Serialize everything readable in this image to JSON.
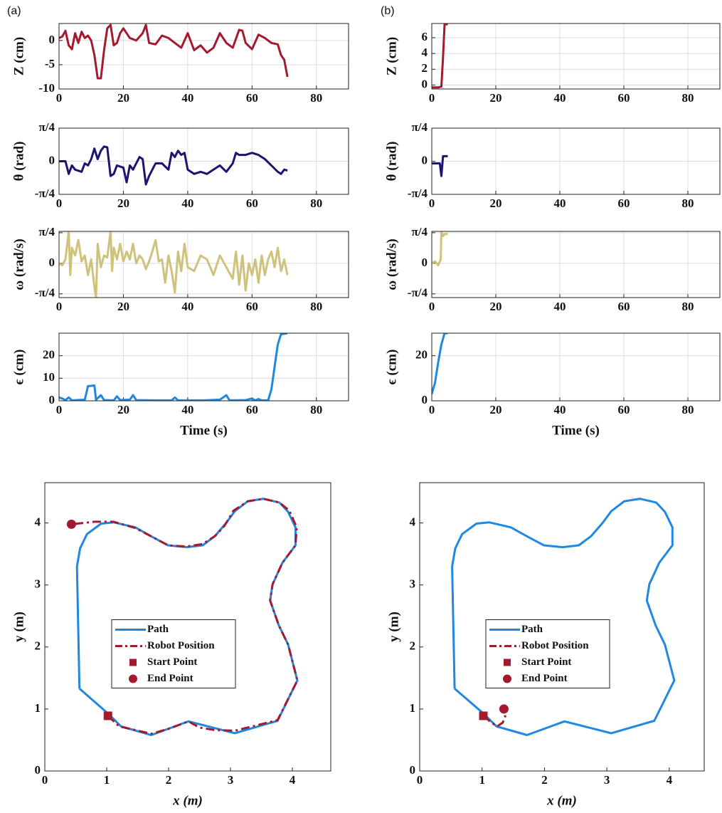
{
  "chart_data": [
    {
      "type": "line",
      "label": "(a)",
      "ylabel": "Z (cm)",
      "color": "#a31a2e",
      "grid": true,
      "xlim": [
        0,
        90
      ],
      "xticks": [
        0,
        20,
        40,
        60,
        80
      ],
      "ylim": [
        -10,
        3.5
      ],
      "yticks": [
        -10,
        -5,
        0
      ],
      "x": [
        0,
        1,
        2,
        3,
        4,
        5,
        6,
        7,
        8,
        9,
        10,
        11,
        12,
        13,
        14,
        15,
        16,
        17,
        18,
        19,
        20,
        22,
        24,
        26,
        27,
        28,
        30,
        32,
        34,
        36,
        38,
        40,
        42,
        44,
        46,
        48,
        50,
        52,
        54,
        56,
        57,
        58,
        60,
        62,
        64,
        66,
        68,
        69,
        70,
        71
      ],
      "values": [
        0.5,
        0.8,
        2,
        -1,
        -1.8,
        1.5,
        -0.5,
        1.8,
        0.5,
        1,
        0,
        -3,
        -7.8,
        -7.8,
        -2,
        2.5,
        3.2,
        -1,
        -0.5,
        1.5,
        2.5,
        0.5,
        0,
        1.5,
        3.2,
        -0.5,
        -0.8,
        1,
        0.5,
        -0.5,
        -1.5,
        1.5,
        -2,
        -1,
        -2.5,
        -1.5,
        1.5,
        -0.5,
        -1.5,
        2.2,
        2,
        -0.5,
        -1.8,
        1.2,
        0.5,
        -0.5,
        -0.8,
        -3,
        -4,
        -7.5
      ]
    },
    {
      "type": "line",
      "ylabel": "θ (rad)",
      "color": "#1c1570",
      "grid": true,
      "xlim": [
        0,
        90
      ],
      "xticks": [
        0,
        20,
        40,
        60,
        80
      ],
      "ylim": [
        -0.785,
        0.785
      ],
      "yticks": [
        {
          "value": -0.785,
          "label": "-π/4"
        },
        0,
        {
          "value": 0.785,
          "label": "π/4"
        }
      ],
      "x": [
        0,
        2,
        3,
        4,
        5,
        7,
        8,
        9,
        10,
        11,
        12,
        13,
        14,
        15,
        16,
        17,
        18,
        20,
        21,
        22,
        23,
        25,
        26,
        27,
        28,
        30,
        32,
        34,
        35,
        36,
        37,
        38,
        39,
        40,
        42,
        44,
        46,
        48,
        50,
        52,
        54,
        55,
        56,
        58,
        60,
        62,
        64,
        66,
        68,
        69,
        70,
        71
      ],
      "values": [
        0,
        0,
        -0.3,
        -0.1,
        -0.2,
        -0.25,
        -0.05,
        -0.1,
        0.05,
        0.3,
        0.05,
        0.25,
        0.35,
        0.33,
        -0.35,
        -0.3,
        -0.1,
        -0.15,
        -0.5,
        -0.1,
        -0.2,
        0.1,
        0.05,
        -0.55,
        -0.35,
        -0.05,
        -0.05,
        -0.2,
        0.2,
        0.1,
        0.25,
        0.15,
        0.2,
        -0.2,
        -0.3,
        -0.25,
        -0.3,
        -0.2,
        -0.1,
        -0.25,
        -0.05,
        0.2,
        0.15,
        0.15,
        0.2,
        0.15,
        0.05,
        -0.1,
        -0.25,
        -0.3,
        -0.2,
        -0.22
      ]
    },
    {
      "type": "line",
      "ylabel": "ω (rad/s)",
      "color": "#cfc27a",
      "grid": true,
      "xlim": [
        0,
        90
      ],
      "xticks": [
        0,
        20,
        40,
        60,
        80
      ],
      "ylim": [
        -0.88,
        0.82
      ],
      "yticks": [
        {
          "value": -0.785,
          "label": "-π/4"
        },
        0,
        {
          "value": 0.785,
          "label": "π/4"
        }
      ],
      "x": [
        0,
        1,
        2,
        3,
        3.5,
        4,
        5,
        6,
        7,
        8,
        9,
        10,
        11,
        11.5,
        12,
        13,
        14,
        15,
        16,
        16.5,
        17,
        18,
        19,
        20,
        21,
        22,
        23,
        24,
        25,
        26,
        27,
        28,
        29,
        30,
        31,
        32,
        33,
        34,
        35,
        36,
        37,
        38,
        39,
        40,
        42,
        44,
        46,
        48,
        50,
        52,
        54,
        55,
        56,
        57,
        58,
        59,
        60,
        61,
        62,
        63,
        64,
        65,
        66,
        67,
        68,
        69,
        70,
        71
      ],
      "values": [
        0,
        -0.05,
        0.1,
        0.82,
        -0.3,
        0.4,
        0.2,
        0.6,
        0.05,
        0.2,
        -0.3,
        0.1,
        -0.6,
        -0.88,
        0.5,
        -0.1,
        0.2,
        0.15,
        0.82,
        -0.2,
        0.4,
        0.1,
        0.5,
        0.05,
        0.3,
        0.1,
        0.5,
        0,
        0.2,
        0.1,
        -0.15,
        0.05,
        0.3,
        0.6,
        0.05,
        0.1,
        -0.5,
        0.2,
        -0.2,
        -0.75,
        0.3,
        -0.2,
        0.5,
        -0.1,
        -0.2,
        0.2,
        0.1,
        -0.3,
        0.2,
        -0.1,
        -0.4,
        0.3,
        -0.55,
        0.2,
        -0.7,
        0,
        -0.3,
        0.1,
        -0.5,
        0.2,
        -0.3,
        0.1,
        0.3,
        -0.1,
        0.4,
        -0.2,
        0.1,
        -0.3
      ]
    },
    {
      "type": "line",
      "ylabel": "ϵ (cm)",
      "xlabel": "Time (s)",
      "color": "#1f88e0",
      "grid": true,
      "xlim": [
        0,
        90
      ],
      "xticks": [
        0,
        20,
        40,
        60,
        80
      ],
      "ylim": [
        0,
        30
      ],
      "yticks": [
        0,
        10,
        20
      ],
      "x": [
        0,
        1,
        2,
        3,
        4,
        8,
        9,
        11,
        11.5,
        13,
        14,
        17,
        18,
        19,
        22,
        23,
        24,
        30,
        35,
        36,
        37,
        45,
        50,
        52,
        53,
        58,
        60,
        61,
        62,
        63,
        65,
        66,
        67,
        68,
        69,
        71
      ],
      "values": [
        1.5,
        1,
        0.3,
        1.5,
        0.2,
        0.5,
        6.5,
        6.8,
        0.5,
        2.5,
        0.3,
        0.2,
        2,
        0.3,
        0.5,
        2.5,
        0.3,
        0.2,
        0.2,
        1.5,
        0.2,
        0.2,
        0.5,
        2.5,
        0.2,
        0.3,
        1,
        0.2,
        0.8,
        0.2,
        0.2,
        5,
        15,
        25,
        29.5,
        30
      ]
    },
    {
      "type": "line",
      "label": "(b)",
      "ylabel": "Z (cm)",
      "color": "#a31a2e",
      "grid": true,
      "xlim": [
        0,
        90
      ],
      "xticks": [
        0,
        20,
        40,
        60,
        80
      ],
      "ylim": [
        -0.5,
        7.8
      ],
      "yticks": [
        0,
        2,
        4,
        6
      ],
      "x": [
        0,
        1,
        2,
        3,
        3.5,
        4,
        5
      ],
      "values": [
        -0.3,
        -0.3,
        -0.3,
        -0.2,
        3.5,
        7.7,
        7.7
      ]
    },
    {
      "type": "line",
      "ylabel": "θ (rad)",
      "color": "#1c1570",
      "grid": true,
      "xlim": [
        0,
        90
      ],
      "xticks": [
        0,
        20,
        40,
        60,
        80
      ],
      "ylim": [
        -0.785,
        0.785
      ],
      "yticks": [
        {
          "value": -0.785,
          "label": "-π/4"
        },
        0,
        {
          "value": 0.785,
          "label": "π/4"
        }
      ],
      "x": [
        0,
        1,
        2,
        2.5,
        3,
        3.5,
        4,
        5
      ],
      "values": [
        -0.05,
        -0.05,
        -0.05,
        -0.05,
        -0.35,
        0.12,
        0.12,
        0.12
      ]
    },
    {
      "type": "line",
      "ylabel": "ω (rad/s)",
      "color": "#cfc27a",
      "grid": true,
      "xlim": [
        0,
        90
      ],
      "xticks": [
        0,
        20,
        40,
        60,
        80
      ],
      "ylim": [
        -0.88,
        0.82
      ],
      "yticks": [
        {
          "value": -0.785,
          "label": "-π/4"
        },
        0,
        {
          "value": 0.785,
          "label": "π/4"
        }
      ],
      "x": [
        0,
        1,
        2,
        2.8,
        3,
        3.5,
        4,
        5
      ],
      "values": [
        0,
        0.05,
        -0.05,
        0.1,
        0.82,
        0.7,
        0.75,
        0.75
      ]
    },
    {
      "type": "line",
      "ylabel": "ϵ (cm)",
      "xlabel": "Time (s)",
      "color": "#1f88e0",
      "grid": true,
      "xlim": [
        0,
        90
      ],
      "xticks": [
        0,
        20,
        40,
        60,
        80
      ],
      "ylim": [
        0,
        30
      ],
      "yticks": [
        0,
        20
      ],
      "x": [
        0,
        1,
        2,
        3,
        4,
        5
      ],
      "values": [
        3,
        8,
        17,
        25,
        30,
        30
      ]
    },
    {
      "type": "line",
      "xlabel": "x (m)",
      "ylabel": "y (m)",
      "grid": false,
      "legend": "center",
      "xlim": [
        0,
        4.62
      ],
      "xticks": [
        0,
        1,
        2,
        3,
        4
      ],
      "ylim": [
        0,
        4.65
      ],
      "yticks": [
        0,
        1,
        2,
        3,
        4
      ],
      "series": [
        {
          "name": "Path",
          "color": "#1f88e0",
          "x": [
            0.56,
            1.03,
            1.23,
            1.72,
            2.32,
            3.07,
            3.76,
            4.08,
            3.93,
            3.78,
            3.64,
            3.68,
            3.84,
            4.05,
            4.05,
            3.93,
            3.79,
            3.53,
            3.28,
            3.07,
            2.93,
            2.75,
            2.55,
            2.29,
            1.99,
            1.71,
            1.46,
            1.11,
            0.91,
            0.68,
            0.57,
            0.52,
            0.56
          ],
          "values": [
            1.33,
            0.92,
            0.72,
            0.58,
            0.8,
            0.61,
            0.81,
            1.46,
            2.04,
            2.35,
            2.75,
            3.01,
            3.36,
            3.64,
            3.93,
            4.18,
            4.33,
            4.39,
            4.35,
            4.19,
            4.0,
            3.79,
            3.64,
            3.61,
            3.64,
            3.79,
            3.93,
            4.01,
            3.99,
            3.82,
            3.59,
            3.3,
            1.33
          ]
        },
        {
          "name": "Robot Position",
          "color": "#a31a2e",
          "dash": true,
          "x": [
            1.02,
            1.2,
            1.72,
            2.0,
            2.32,
            2.5,
            2.75,
            3.07,
            3.76,
            4.08,
            3.93,
            3.78,
            3.64,
            3.68,
            3.84,
            4.05,
            4.07,
            3.95,
            3.79,
            3.53,
            3.28,
            3.05,
            2.9,
            2.75,
            2.55,
            2.29,
            1.99,
            1.71,
            1.46,
            1.11,
            0.8,
            0.43
          ],
          "values": [
            0.89,
            0.72,
            0.6,
            0.68,
            0.8,
            0.7,
            0.66,
            0.65,
            0.82,
            1.46,
            2.04,
            2.35,
            2.75,
            3.01,
            3.36,
            3.64,
            3.93,
            4.2,
            4.33,
            4.39,
            4.35,
            4.2,
            3.95,
            3.79,
            3.66,
            3.62,
            3.64,
            3.79,
            3.92,
            4.02,
            4.02,
            3.98
          ]
        },
        {
          "name": "Start Point",
          "color": "#a31a2e",
          "marker": "square",
          "x": [
            1.02
          ],
          "values": [
            0.89
          ]
        },
        {
          "name": "End Point",
          "color": "#a31a2e",
          "marker": "circle",
          "x": [
            0.43
          ],
          "values": [
            3.98
          ]
        }
      ]
    },
    {
      "type": "line",
      "xlabel": "x (m)",
      "ylabel": "y (m)",
      "grid": false,
      "legend": "center",
      "xlim": [
        0,
        4.56
      ],
      "xticks": [
        0,
        1,
        2,
        3,
        4
      ],
      "ylim": [
        0,
        4.65
      ],
      "yticks": [
        0,
        1,
        2,
        3,
        4
      ],
      "series": [
        {
          "name": "Path",
          "color": "#1f88e0",
          "x": [
            0.56,
            1.03,
            1.23,
            1.72,
            2.32,
            3.07,
            3.76,
            4.08,
            3.93,
            3.78,
            3.64,
            3.68,
            3.84,
            4.05,
            4.05,
            3.93,
            3.79,
            3.53,
            3.28,
            3.07,
            2.93,
            2.75,
            2.55,
            2.29,
            1.99,
            1.71,
            1.46,
            1.11,
            0.91,
            0.68,
            0.57,
            0.52,
            0.56
          ],
          "values": [
            1.33,
            0.92,
            0.72,
            0.58,
            0.8,
            0.61,
            0.81,
            1.46,
            2.04,
            2.35,
            2.75,
            3.01,
            3.36,
            3.64,
            3.93,
            4.18,
            4.33,
            4.39,
            4.35,
            4.19,
            4.0,
            3.79,
            3.64,
            3.61,
            3.64,
            3.79,
            3.93,
            4.01,
            3.99,
            3.82,
            3.59,
            3.3,
            1.33
          ]
        },
        {
          "name": "Robot Position",
          "color": "#a31a2e",
          "dash": true,
          "x": [
            1.02,
            1.15,
            1.24,
            1.33,
            1.37,
            1.35
          ],
          "values": [
            0.89,
            0.78,
            0.72,
            0.78,
            0.88,
            1.0
          ]
        },
        {
          "name": "Start Point",
          "color": "#a31a2e",
          "marker": "square",
          "x": [
            1.02
          ],
          "values": [
            0.89
          ]
        },
        {
          "name": "End Point",
          "color": "#a31a2e",
          "marker": "circle",
          "x": [
            1.35
          ],
          "values": [
            1.0
          ]
        }
      ]
    }
  ]
}
